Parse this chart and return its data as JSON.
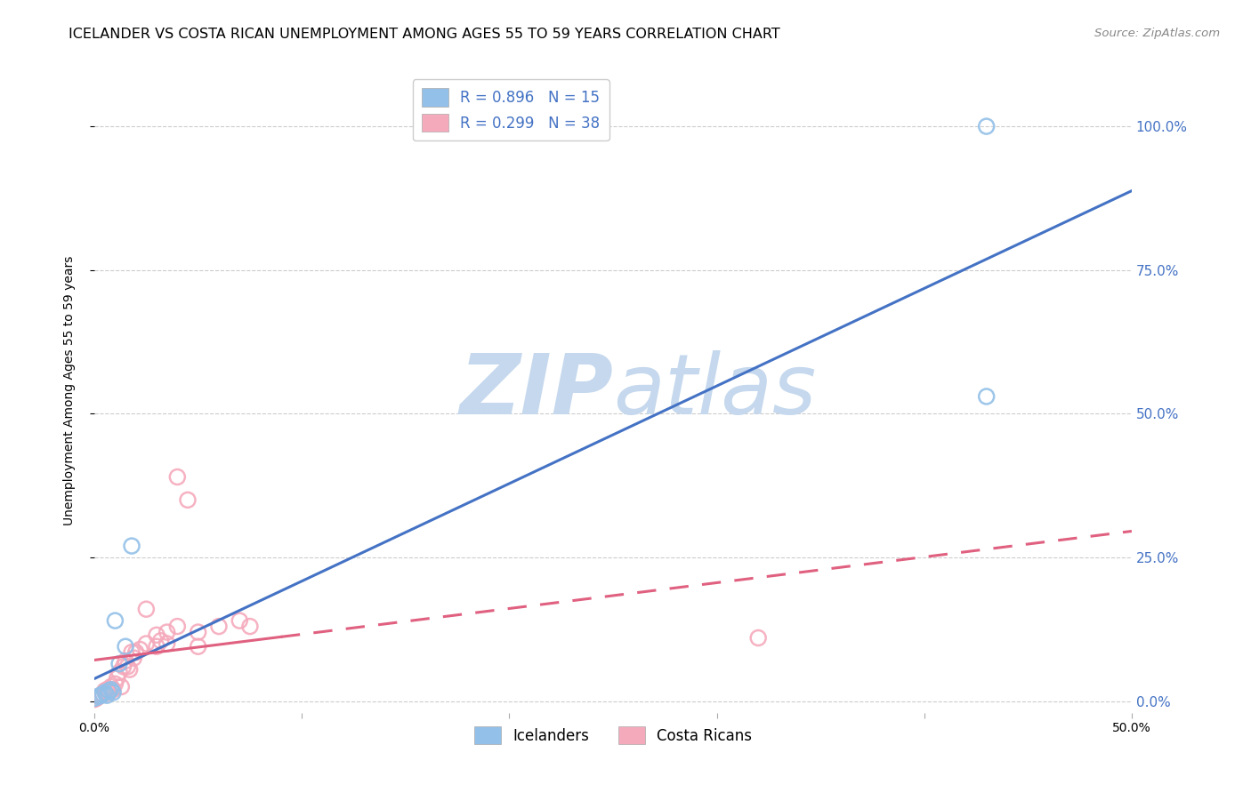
{
  "title": "ICELANDER VS COSTA RICAN UNEMPLOYMENT AMONG AGES 55 TO 59 YEARS CORRELATION CHART",
  "source": "Source: ZipAtlas.com",
  "ylabel": "Unemployment Among Ages 55 to 59 years",
  "xlim": [
    0.0,
    0.5
  ],
  "ylim": [
    -0.02,
    1.1
  ],
  "xticks": [
    0.0,
    0.1,
    0.2,
    0.3,
    0.4,
    0.5
  ],
  "xticklabels": [
    "0.0%",
    "",
    "",
    "",
    "",
    "50.0%"
  ],
  "yticks": [
    0.0,
    0.25,
    0.5,
    0.75,
    1.0
  ],
  "yticklabels_right": [
    "0.0%",
    "25.0%",
    "50.0%",
    "75.0%",
    "100.0%"
  ],
  "grid_color": "#cccccc",
  "background_color": "#ffffff",
  "watermark_zip": "ZIP",
  "watermark_atlas": "atlas",
  "watermark_color": "#c5d8ed",
  "icelanders_color": "#92c0e8",
  "costa_ricans_color": "#f5aabc",
  "icelanders_line_color": "#4472c4",
  "costa_ricans_line_color": "#e06080",
  "right_axis_color": "#4472c4",
  "icelanders_R": "0.896",
  "icelanders_N": "15",
  "costa_ricans_R": "0.299",
  "costa_ricans_N": "38",
  "ice_x": [
    0.0,
    0.002,
    0.003,
    0.004,
    0.005,
    0.006,
    0.007,
    0.008,
    0.009,
    0.01,
    0.012,
    0.015,
    0.018,
    0.43,
    0.43
  ],
  "ice_y": [
    0.005,
    0.008,
    0.01,
    0.012,
    0.015,
    0.01,
    0.018,
    0.02,
    0.015,
    0.14,
    0.065,
    0.095,
    0.27,
    0.53,
    1.0
  ],
  "cr_x": [
    0.0,
    0.001,
    0.002,
    0.003,
    0.004,
    0.005,
    0.006,
    0.007,
    0.008,
    0.009,
    0.01,
    0.011,
    0.012,
    0.013,
    0.014,
    0.015,
    0.016,
    0.017,
    0.018,
    0.019,
    0.02,
    0.022,
    0.025,
    0.03,
    0.035,
    0.04,
    0.045,
    0.05,
    0.06,
    0.07,
    0.075,
    0.03,
    0.32,
    0.032,
    0.025,
    0.035,
    0.04,
    0.05
  ],
  "cr_y": [
    0.003,
    0.005,
    0.008,
    0.01,
    0.012,
    0.018,
    0.02,
    0.015,
    0.025,
    0.02,
    0.03,
    0.04,
    0.05,
    0.025,
    0.06,
    0.07,
    0.06,
    0.055,
    0.085,
    0.075,
    0.085,
    0.09,
    0.1,
    0.115,
    0.12,
    0.13,
    0.35,
    0.095,
    0.13,
    0.14,
    0.13,
    0.095,
    0.11,
    0.105,
    0.16,
    0.1,
    0.39,
    0.12
  ],
  "title_fontsize": 11.5,
  "axis_label_fontsize": 10,
  "tick_fontsize": 10,
  "legend_fontsize": 12,
  "source_fontsize": 9.5
}
